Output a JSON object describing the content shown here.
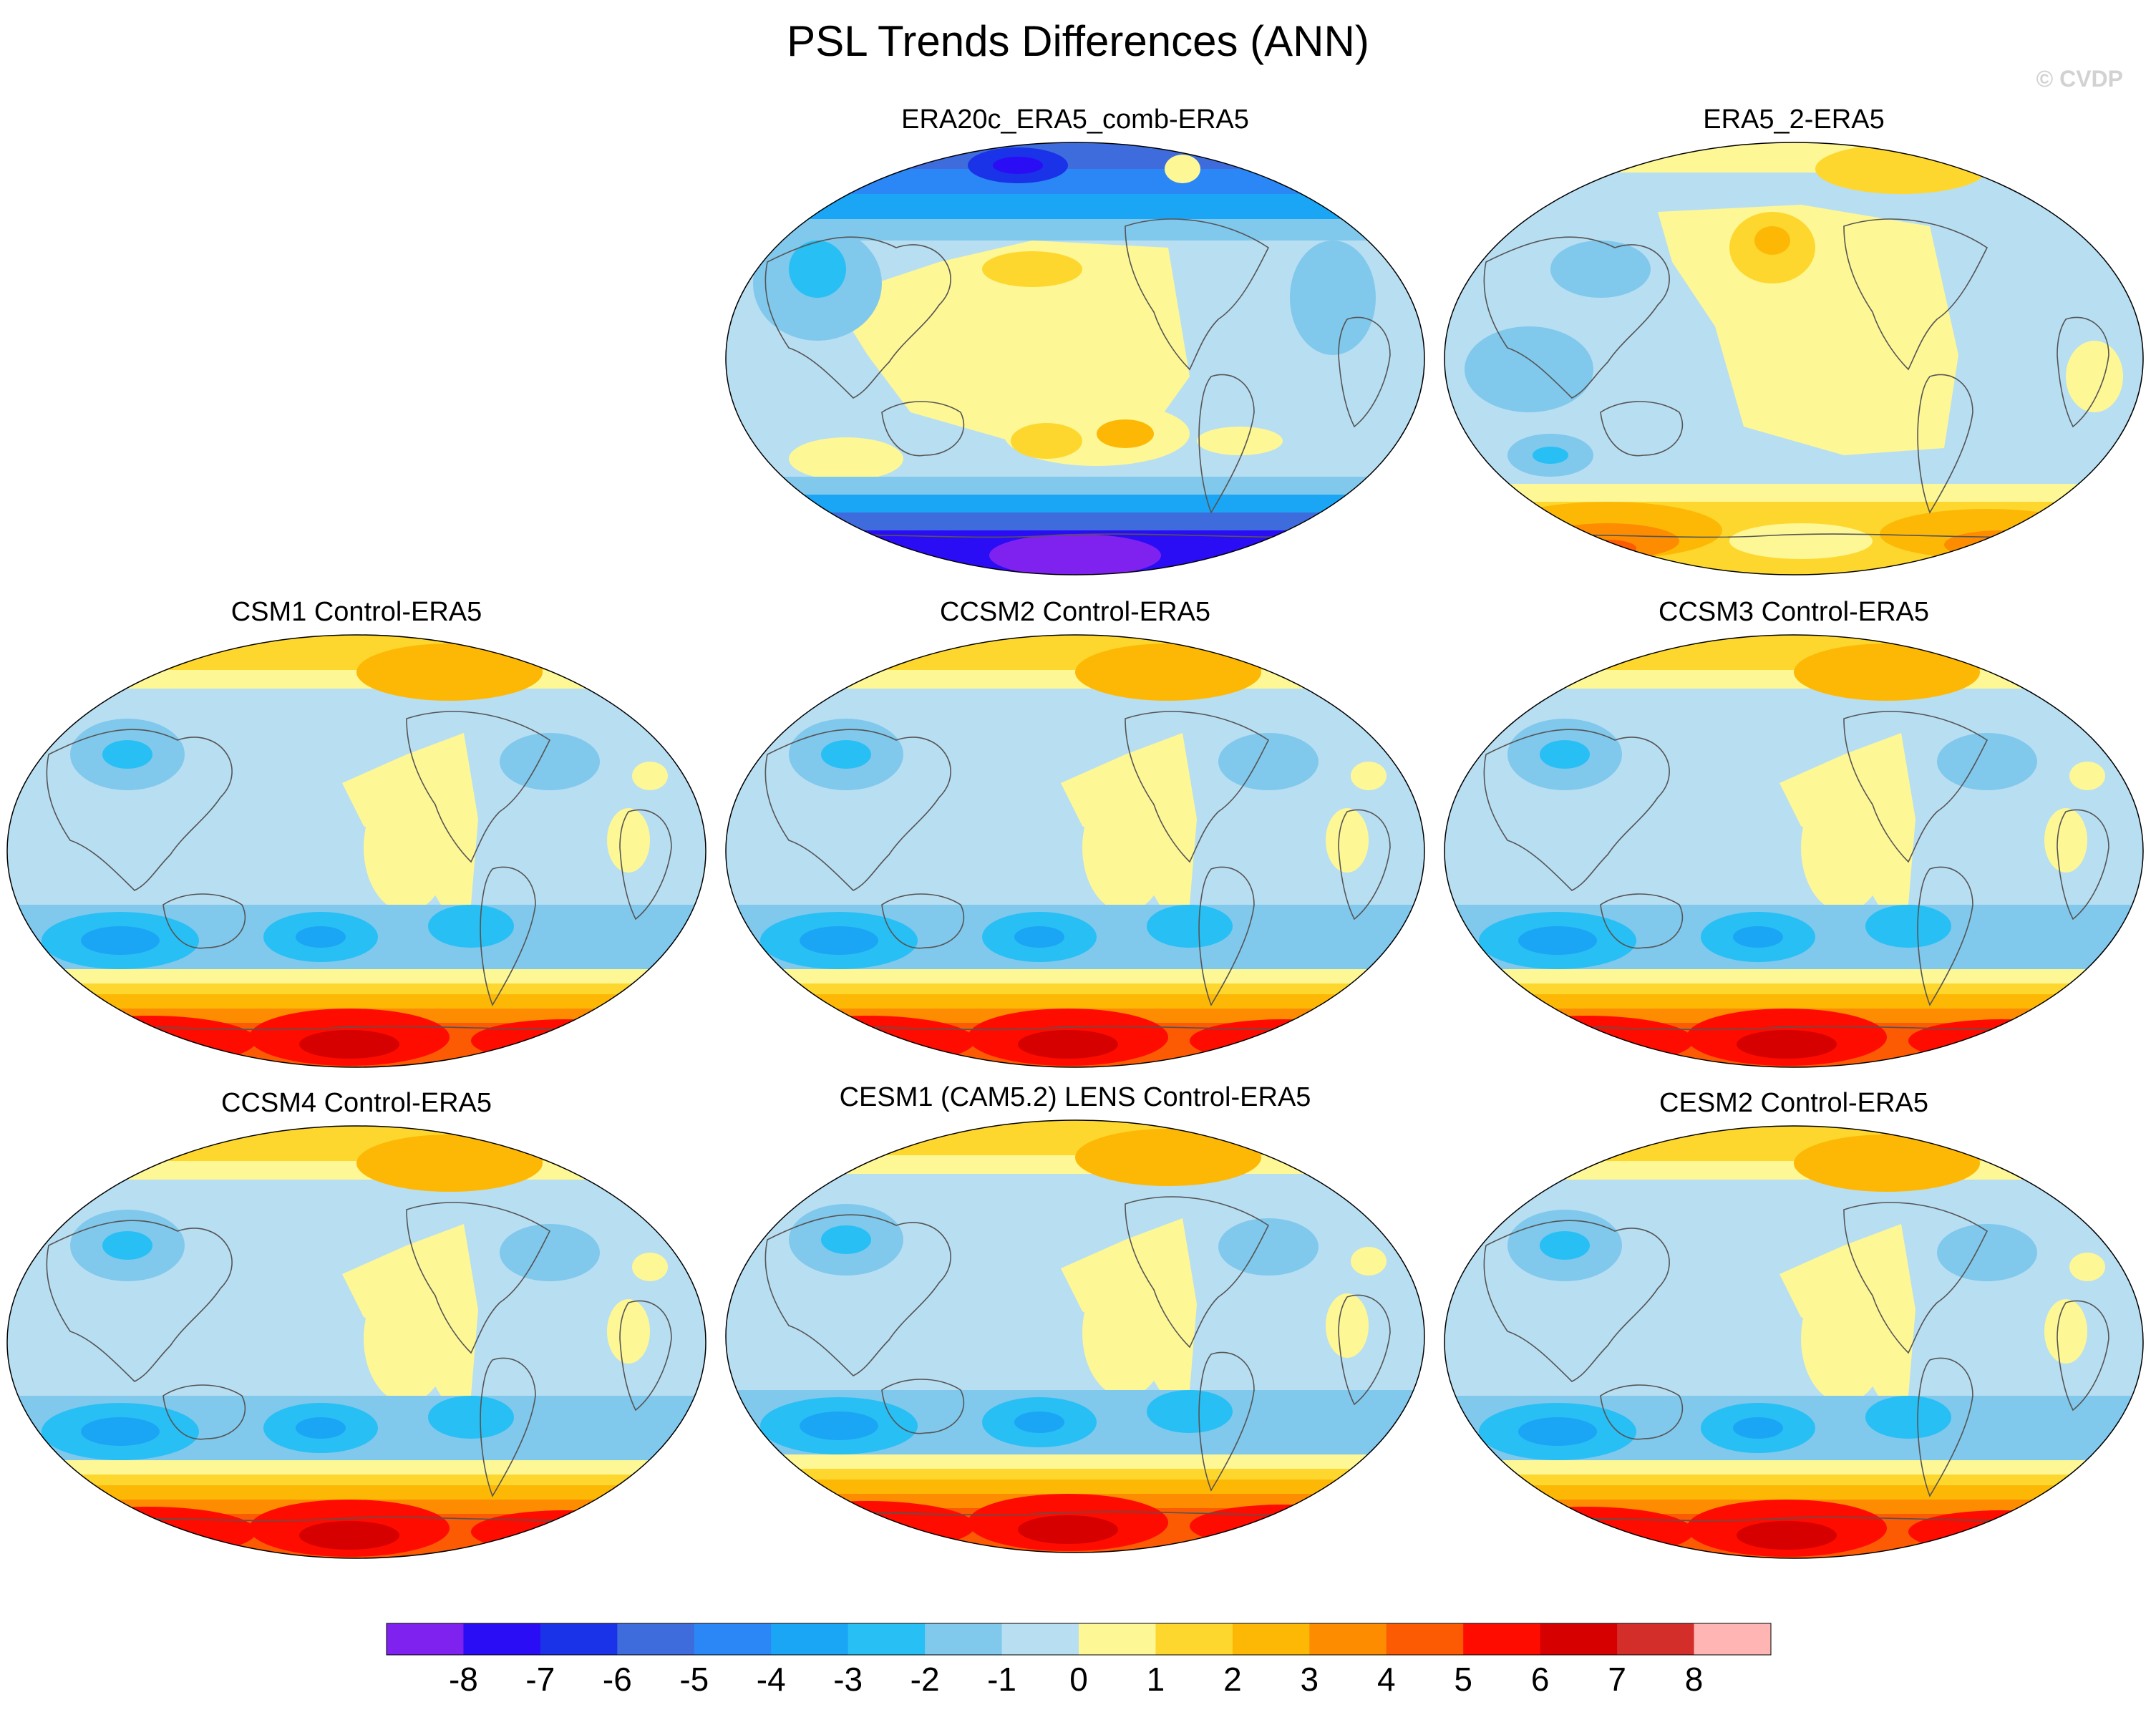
{
  "title": "PSL Trends Differences (ANN)",
  "watermark": "© CVDP",
  "colors": {
    "coastline": "#555555",
    "levels": [
      "#7f22f0",
      "#2a0df5",
      "#1a32e8",
      "#3e6cdd",
      "#2a87f5",
      "#1ba5f5",
      "#28bff5",
      "#80c8ec",
      "#b8def2",
      "#fdf796",
      "#fed72e",
      "#fdb806",
      "#fd8c00",
      "#fd5a04",
      "#fe0c00",
      "#d60000",
      "#d42e2b",
      "#ffb5b3"
    ]
  },
  "colorbar": {
    "labels": [
      "-8",
      "-7",
      "-6",
      "-5",
      "-4",
      "-3",
      "-2",
      "-1",
      "0",
      "1",
      "2",
      "3",
      "4",
      "5",
      "6",
      "7",
      "8"
    ]
  },
  "panels": [
    {
      "title": "ERA20c_ERA5_comb-ERA5",
      "scheme": "era20c"
    },
    {
      "title": "ERA5_2-ERA5",
      "scheme": "era5_2"
    },
    {
      "title": "CSM1 Control-ERA5",
      "scheme": "model"
    },
    {
      "title": "CCSM2 Control-ERA5",
      "scheme": "model"
    },
    {
      "title": "CCSM3 Control-ERA5",
      "scheme": "model"
    },
    {
      "title": "CCSM4 Control-ERA5",
      "scheme": "model"
    },
    {
      "title": "CESM1 (CAM5.2) LENS Control-ERA5",
      "scheme": "model"
    },
    {
      "title": "CESM2 Control-ERA5",
      "scheme": "model"
    }
  ]
}
